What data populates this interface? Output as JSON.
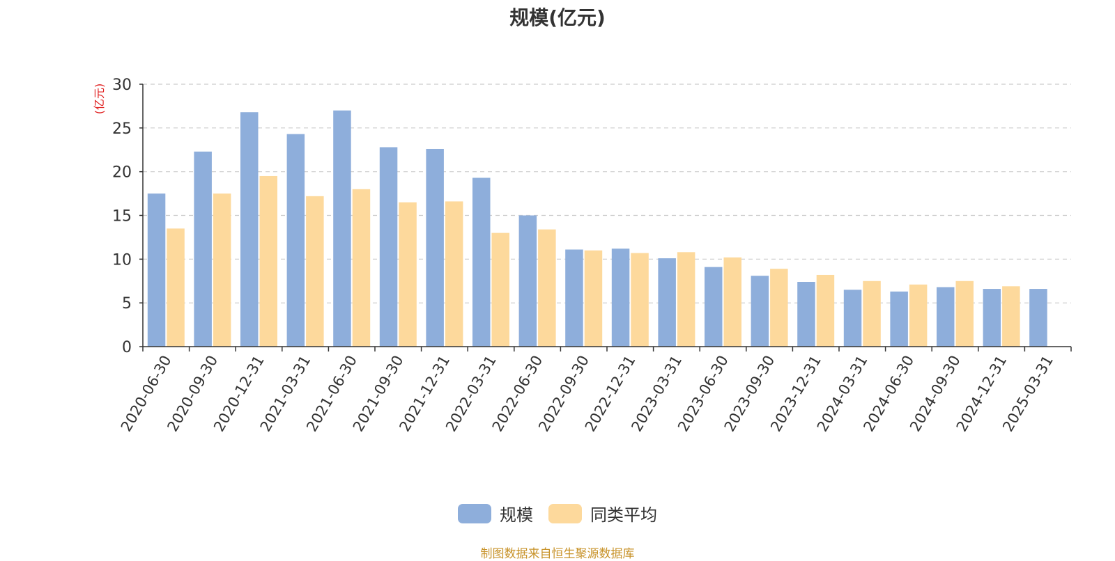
{
  "chart_data": {
    "type": "bar",
    "title": "规模(亿元)",
    "ylabel": "(亿元)",
    "xlabel": "",
    "ylim": [
      0,
      30
    ],
    "yticks": [
      0,
      5,
      10,
      15,
      20,
      25,
      30
    ],
    "grid": true,
    "legend_position": "bottom",
    "categories": [
      "2020-06-30",
      "2020-09-30",
      "2020-12-31",
      "2021-03-31",
      "2021-06-30",
      "2021-09-30",
      "2021-12-31",
      "2022-03-31",
      "2022-06-30",
      "2022-09-30",
      "2022-12-31",
      "2023-03-31",
      "2023-06-30",
      "2023-09-30",
      "2023-12-31",
      "2024-03-31",
      "2024-06-30",
      "2024-09-30",
      "2024-12-31",
      "2025-03-31"
    ],
    "series": [
      {
        "name": "规模",
        "color": "#8eaedb",
        "values": [
          17.5,
          22.3,
          26.8,
          24.3,
          27.0,
          22.8,
          22.6,
          19.3,
          15.0,
          11.1,
          11.2,
          10.1,
          9.1,
          8.1,
          7.4,
          6.5,
          6.3,
          6.8,
          6.6,
          6.6
        ]
      },
      {
        "name": "同类平均",
        "color": "#fdd99c",
        "values": [
          13.5,
          17.5,
          19.5,
          17.2,
          18.0,
          16.5,
          16.6,
          13.0,
          13.4,
          11.0,
          10.7,
          10.8,
          10.2,
          8.9,
          8.2,
          7.5,
          7.1,
          7.5,
          6.9,
          null
        ]
      }
    ]
  },
  "source_note": "制图数据来自恒生聚源数据库"
}
